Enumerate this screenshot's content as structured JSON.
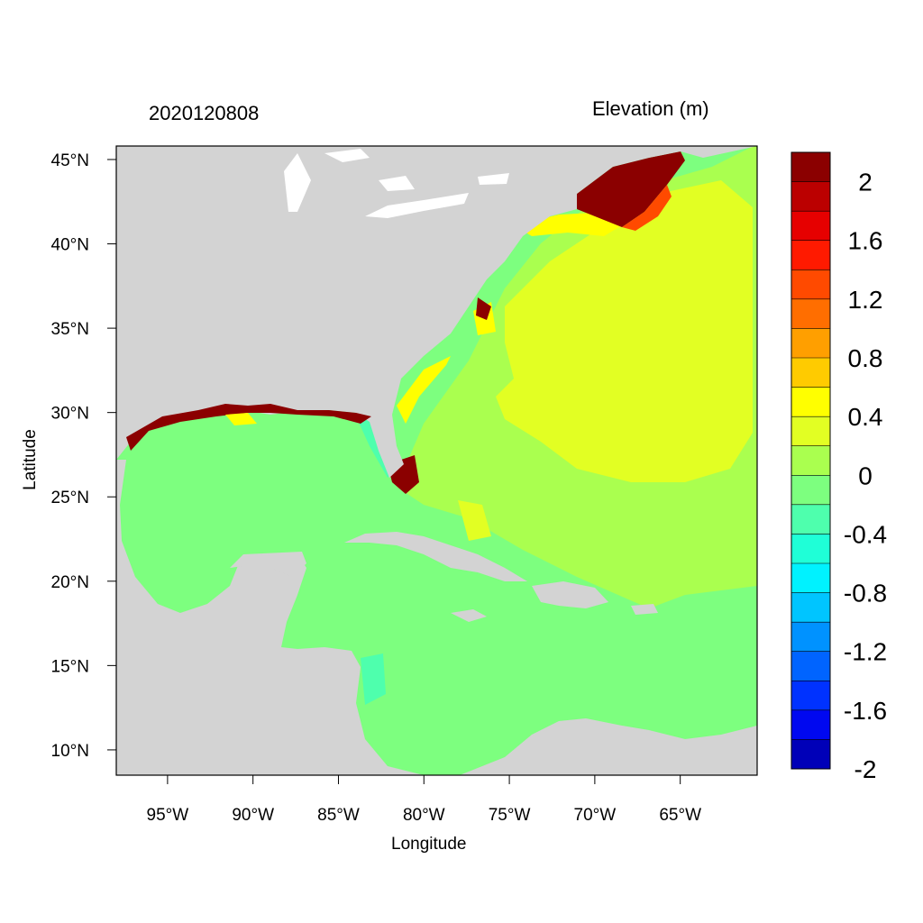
{
  "map": {
    "date_label": "2020120808",
    "variable_label": "Elevation (m)",
    "x_axis_label": "Longitude",
    "y_axis_label": "Latitude",
    "lon_range": [
      -98,
      -60.5
    ],
    "lat_range": [
      8.5,
      45.8
    ],
    "lon_ticks": [
      {
        "value": -95,
        "label": "95°W"
      },
      {
        "value": -90,
        "label": "90°W"
      },
      {
        "value": -85,
        "label": "85°W"
      },
      {
        "value": -80,
        "label": "80°W"
      },
      {
        "value": -75,
        "label": "75°W"
      },
      {
        "value": -70,
        "label": "70°W"
      },
      {
        "value": -65,
        "label": "65°W"
      }
    ],
    "lat_ticks": [
      {
        "value": 45,
        "label": "45°N"
      },
      {
        "value": 40,
        "label": "40°N"
      },
      {
        "value": 35,
        "label": "35°N"
      },
      {
        "value": 30,
        "label": "30°N"
      },
      {
        "value": 25,
        "label": "25°N"
      },
      {
        "value": 20,
        "label": "20°N"
      },
      {
        "value": 15,
        "label": "15°N"
      },
      {
        "value": 10,
        "label": "10°N"
      }
    ],
    "land_color": "#d3d3d3",
    "colorbar": {
      "bins_top_to_bottom": [
        "#8b0000",
        "#bb0000",
        "#e60000",
        "#ff1a00",
        "#ff4a00",
        "#ff6e00",
        "#ff9f00",
        "#ffcb00",
        "#ffff00",
        "#e2ff23",
        "#aaff4f",
        "#7dff7f",
        "#4effad",
        "#1fffd7",
        "#00f2ff",
        "#00c5ff",
        "#0092ff",
        "#0064ff",
        "#0032ff",
        "#0008f0",
        "#0000b8"
      ],
      "labels": [
        {
          "value": 2,
          "label": "2"
        },
        {
          "value": 1.6,
          "label": "1.6"
        },
        {
          "value": 1.2,
          "label": "1.2"
        },
        {
          "value": 0.8,
          "label": "0.8"
        },
        {
          "value": 0.4,
          "label": "0.4"
        },
        {
          "value": 0,
          "label": "0"
        },
        {
          "value": -0.4,
          "label": "-0.4"
        },
        {
          "value": -0.8,
          "label": "-0.8"
        },
        {
          "value": -1.2,
          "label": "-1.2"
        },
        {
          "value": -1.6,
          "label": "-1.6"
        },
        {
          "value": -2,
          "label": "-2"
        }
      ]
    },
    "field_colors": {
      "gulf_caribbean": "#7dff7f",
      "atlantic_near": "#aaff4f",
      "atlantic_high": "#e2ff23",
      "positive_yellow": "#ffff00",
      "cyan_low": "#4effad",
      "surge_extreme": "#8b0000"
    }
  }
}
